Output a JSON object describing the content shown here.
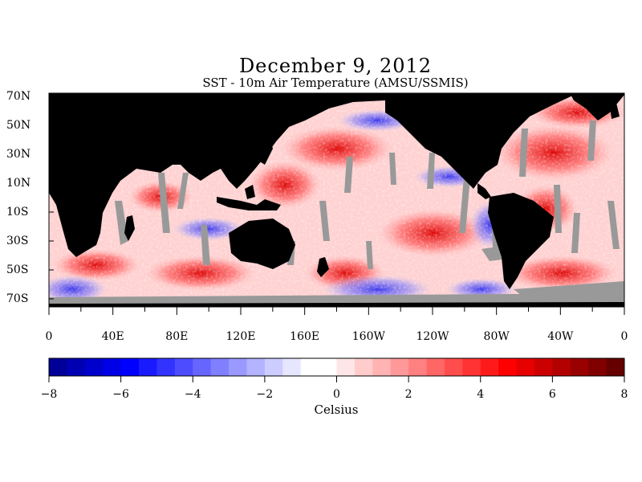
{
  "title": "December 9, 2012",
  "subtitle": "SST - 10m Air Temperature (AMSU/SSMIS)",
  "map": {
    "lat_labels": [
      "70N",
      "50N",
      "30N",
      "10N",
      "10S",
      "30S",
      "50S",
      "70S"
    ],
    "lon_labels": [
      "0",
      "40E",
      "80E",
      "120E",
      "160E",
      "160W",
      "120W",
      "80W",
      "40W",
      "0"
    ],
    "colors": {
      "land": "#000000",
      "missing": "#999999",
      "ocean_neutral": "#ffffff"
    }
  },
  "colorbar": {
    "min": -8,
    "max": 8,
    "step": 0.5,
    "tick_labels": [
      "-8",
      "-6",
      "-4",
      "-2",
      "0",
      "2",
      "4",
      "6",
      "8"
    ],
    "unit_label": "Celsius",
    "colors": [
      "#000099",
      "#0000b3",
      "#0000cc",
      "#0000e6",
      "#0000ff",
      "#1a1aff",
      "#3333ff",
      "#4d4dff",
      "#6666ff",
      "#8080ff",
      "#9999ff",
      "#b3b3ff",
      "#ccccff",
      "#e6e6ff",
      "#ffffff",
      "#ffffff",
      "#ffe6e6",
      "#ffcccc",
      "#ffb3b3",
      "#ff9999",
      "#ff8080",
      "#ff6666",
      "#ff4d4d",
      "#ff3333",
      "#ff1a1a",
      "#ff0000",
      "#e60000",
      "#cc0000",
      "#b30000",
      "#990000",
      "#800000",
      "#660000"
    ]
  }
}
